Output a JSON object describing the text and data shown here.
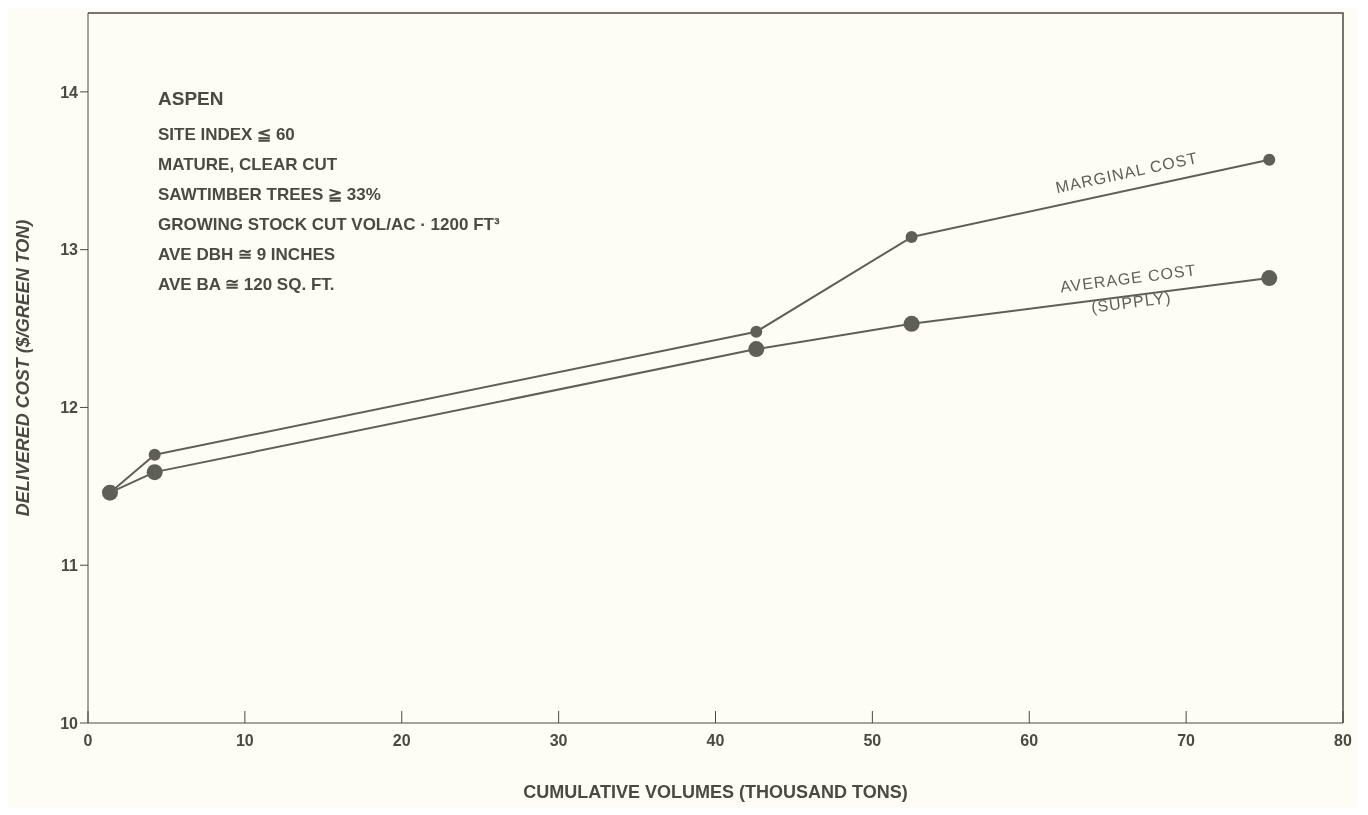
{
  "chart_data": {
    "type": "line",
    "xlabel": "CUMULATIVE VOLUMES (THOUSAND TONS)",
    "ylabel": "DELIVERED COST ($/GREEN TON)",
    "xlim": [
      0,
      80
    ],
    "xticks": [
      0,
      10,
      20,
      30,
      40,
      50,
      60,
      70,
      80
    ],
    "ylim": [
      10,
      14.5
    ],
    "yticks": [
      10,
      11,
      12,
      13,
      14
    ],
    "grid": false,
    "legend": false,
    "marker": "circle",
    "line_style": "solid",
    "annotations": [
      "ASPEN",
      "SITE INDEX ≦ 60",
      "MATURE, CLEAR CUT",
      "SAWTIMBER TREES ≧ 33%",
      "GROWING STOCK CUT VOL/AC · 1200 FT³",
      "AVE DBH ≅ 9 INCHES",
      "AVE BA ≅ 120 SQ. FT."
    ],
    "series": [
      {
        "name": "MARGINAL COST",
        "color": "#5f6055",
        "x": [
          1.4,
          4.25,
          42.6,
          52.5,
          75.3
        ],
        "values": [
          11.46,
          11.7,
          12.48,
          13.08,
          13.57
        ]
      },
      {
        "name": "AVERAGE COST\n(SUPPLY)",
        "color": "#5f6055",
        "x": [
          1.4,
          4.25,
          42.6,
          52.5,
          75.3
        ],
        "values": [
          11.46,
          11.59,
          12.37,
          12.53,
          12.82
        ]
      }
    ]
  }
}
